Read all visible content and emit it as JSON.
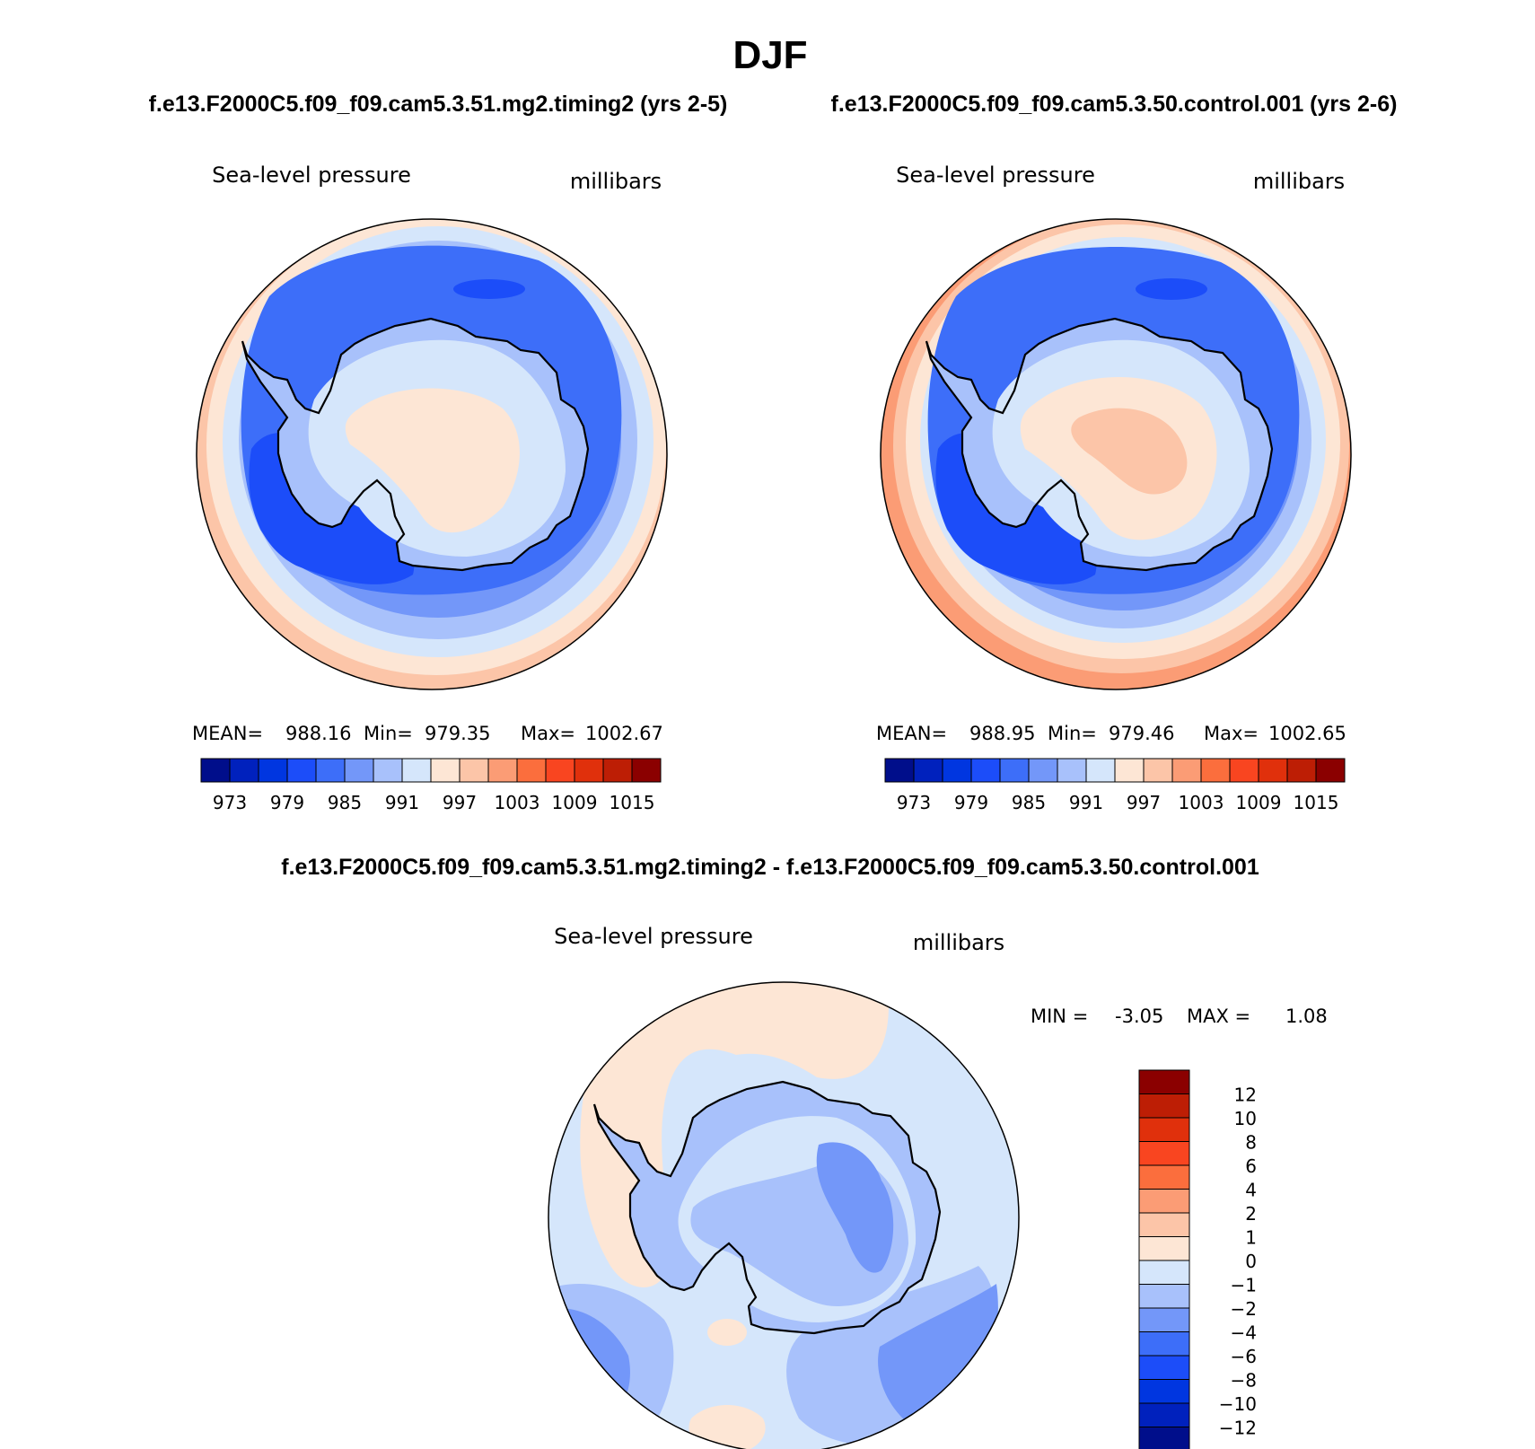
{
  "page": {
    "title": "DJF",
    "case_a_title": "f.e13.F2000C5.f09_f09.cam5.3.51.mg2.timing2 (yrs 2-5)",
    "case_b_title": "f.e13.F2000C5.f09_f09.cam5.3.50.control.001 (yrs 2-6)",
    "diff_title": "f.e13.F2000C5.f09_f09.cam5.3.51.mg2.timing2 - f.e13.F2000C5.f09_f09.cam5.3.50.control.001"
  },
  "colors": {
    "abs_scale": [
      "#000e8b",
      "#0021bd",
      "#0036e0",
      "#1c4df9",
      "#3d6ef9",
      "#7397f9",
      "#a8c1fb",
      "#d5e6fb",
      "#fde6d5",
      "#fcc5a8",
      "#fb9c75",
      "#fb6e3d",
      "#f94520",
      "#e0300c",
      "#bd1e05",
      "#8b0000"
    ],
    "diff_scale": [
      "#000e8b",
      "#0021bd",
      "#0036e0",
      "#1c4df9",
      "#3d6ef9",
      "#7397f9",
      "#a8c1fb",
      "#d5e6fb",
      "#fde6d5",
      "#fcc5a8",
      "#fb9c75",
      "#fb6e3d",
      "#f94520",
      "#e0300c",
      "#bd1e05",
      "#8b0000"
    ]
  },
  "chart_data": [
    {
      "type": "heatmap",
      "projection": "south-polar-stereographic",
      "title": "Sea-level pressure",
      "units": "millibars",
      "stats": {
        "mean_label": "MEAN=",
        "mean": "988.16",
        "min_label": "Min=",
        "min": "979.35",
        "max_label": "Max=",
        "max": "1002.67"
      },
      "colorbar": {
        "orientation": "horizontal",
        "tick_labels": [
          "973",
          "979",
          "985",
          "991",
          "997",
          "1003",
          "1009",
          "1015"
        ]
      },
      "levels": [
        970,
        973,
        976,
        979,
        982,
        985,
        988,
        991,
        994,
        997,
        1000,
        1003,
        1006,
        1009,
        1012,
        1015,
        1018
      ],
      "regions": [
        {
          "name": "outer-ring",
          "level_index": 8
        },
        {
          "name": "ring-2",
          "level_index": 7
        },
        {
          "name": "ring-3",
          "level_index": 6
        },
        {
          "name": "ring-4",
          "level_index": 5
        },
        {
          "name": "low-trough",
          "level_index": 4
        },
        {
          "name": "deep-low",
          "level_index": 3
        },
        {
          "name": "pole-high",
          "level_index": 8
        }
      ]
    },
    {
      "type": "heatmap",
      "projection": "south-polar-stereographic",
      "title": "Sea-level pressure",
      "units": "millibars",
      "stats": {
        "mean_label": "MEAN=",
        "mean": "988.95",
        "min_label": "Min=",
        "min": "979.46",
        "max_label": "Max=",
        "max": "1002.65"
      },
      "colorbar": {
        "orientation": "horizontal",
        "tick_labels": [
          "973",
          "979",
          "985",
          "991",
          "997",
          "1003",
          "1009",
          "1015"
        ]
      },
      "levels": [
        970,
        973,
        976,
        979,
        982,
        985,
        988,
        991,
        994,
        997,
        1000,
        1003,
        1006,
        1009,
        1012,
        1015,
        1018
      ]
    },
    {
      "type": "heatmap",
      "projection": "south-polar-stereographic",
      "title": "Sea-level pressure",
      "units": "millibars",
      "stats": {
        "min_label": "MIN =",
        "min": "-3.05",
        "max_label": "MAX =",
        "max": "1.08"
      },
      "colorbar": {
        "orientation": "vertical",
        "tick_labels": [
          "12",
          "10",
          "8",
          "6",
          "4",
          "2",
          "1",
          "0",
          "−1",
          "−2",
          "−4",
          "−6",
          "−8",
          "−10",
          "−12"
        ]
      },
      "levels": [
        -14,
        -12,
        -10,
        -8,
        -6,
        -4,
        -2,
        -1,
        0,
        1,
        2,
        4,
        6,
        8,
        10,
        12,
        14
      ]
    }
  ]
}
